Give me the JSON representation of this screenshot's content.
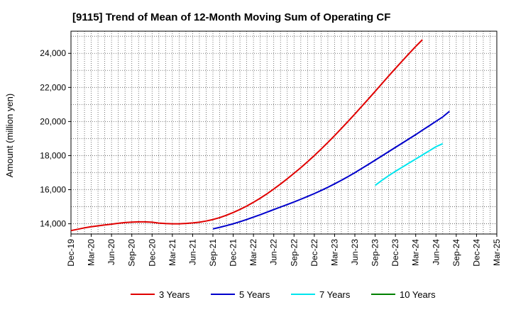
{
  "chart_data": {
    "type": "line",
    "title": "[9115]  Trend of Mean of 12-Month Moving Sum of Operating CF",
    "xlabel": "",
    "ylabel": "Amount (million yen)",
    "x_ticks": [
      "Dec-19",
      "Mar-20",
      "Jun-20",
      "Sep-20",
      "Dec-20",
      "Mar-21",
      "Jun-21",
      "Sep-21",
      "Dec-21",
      "Mar-22",
      "Jun-22",
      "Sep-22",
      "Dec-22",
      "Mar-23",
      "Jun-23",
      "Sep-23",
      "Dec-23",
      "Mar-24",
      "Jun-24",
      "Sep-24",
      "Dec-24",
      "Mar-25"
    ],
    "y_ticks": [
      14000,
      16000,
      18000,
      20000,
      22000,
      24000
    ],
    "y_tick_labels": [
      "14,000",
      "16,000",
      "18,000",
      "20,000",
      "22,000",
      "24,000"
    ],
    "ylim": [
      13400,
      25300
    ],
    "grid": true,
    "legend_position": "bottom",
    "series": [
      {
        "name": "3 Years",
        "color": "#e00000",
        "start_index": 0,
        "values": [
          13600,
          13680,
          13760,
          13830,
          13880,
          13930,
          13980,
          14030,
          14070,
          14100,
          14110,
          14110,
          14090,
          14040,
          14010,
          14000,
          14000,
          14020,
          14050,
          14090,
          14160,
          14250,
          14360,
          14500,
          14660,
          14840,
          15040,
          15260,
          15500,
          15760,
          16040,
          16330,
          16640,
          16960,
          17290,
          17640,
          18000,
          18380,
          18770,
          19170,
          19590,
          20010,
          20440,
          20880,
          21320,
          21770,
          22220,
          22670,
          23110,
          23550,
          23980,
          24400,
          24800
        ]
      },
      {
        "name": "5 Years",
        "color": "#0000cc",
        "start_index": 21,
        "values": [
          13700,
          13790,
          13890,
          14000,
          14120,
          14250,
          14390,
          14530,
          14680,
          14830,
          14980,
          15130,
          15280,
          15440,
          15600,
          15770,
          15950,
          16140,
          16340,
          16550,
          16770,
          17000,
          17240,
          17480,
          17730,
          17980,
          18230,
          18480,
          18730,
          18980,
          19230,
          19490,
          19750,
          20010,
          20270,
          20600
        ]
      },
      {
        "name": "7 Years",
        "color": "#00e5ee",
        "start_index": 45,
        "values": [
          16250,
          16550,
          16820,
          17080,
          17320,
          17560,
          17800,
          18040,
          18280,
          18520,
          18700
        ]
      },
      {
        "name": "10 Years",
        "color": "#008000",
        "start_index": 0,
        "values": []
      }
    ]
  }
}
